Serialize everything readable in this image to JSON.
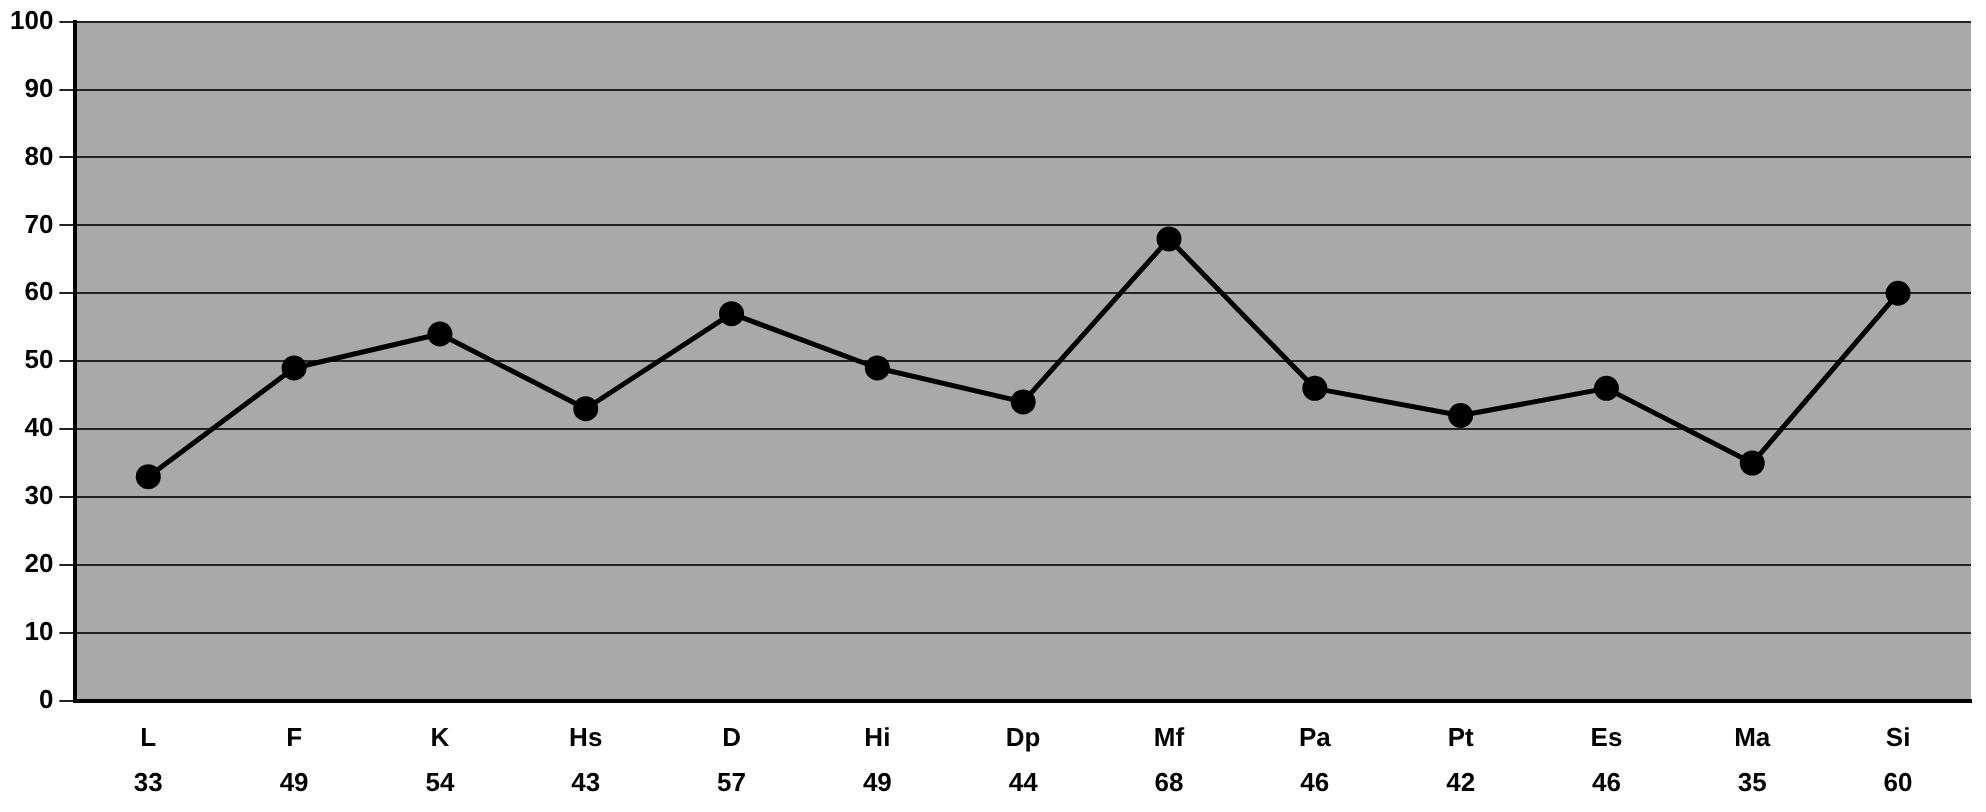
{
  "chart_data": {
    "type": "line",
    "categories": [
      "L",
      "F",
      "K",
      "Hs",
      "D",
      "Hi",
      "Dp",
      "Mf",
      "Pa",
      "Pt",
      "Es",
      "Ma",
      "Si"
    ],
    "series": [
      {
        "color": "#000000",
        "values": [
          33,
          49,
          54,
          43,
          57,
          49,
          44,
          68,
          46,
          42,
          46,
          35,
          60
        ]
      }
    ],
    "ylim": [
      0,
      100
    ],
    "yticks": [
      0,
      10,
      20,
      30,
      40,
      50,
      60,
      70,
      80,
      90,
      100
    ],
    "grid": "y",
    "marker": "circle",
    "line_style": "solid",
    "legend": false,
    "data_labels": true
  }
}
